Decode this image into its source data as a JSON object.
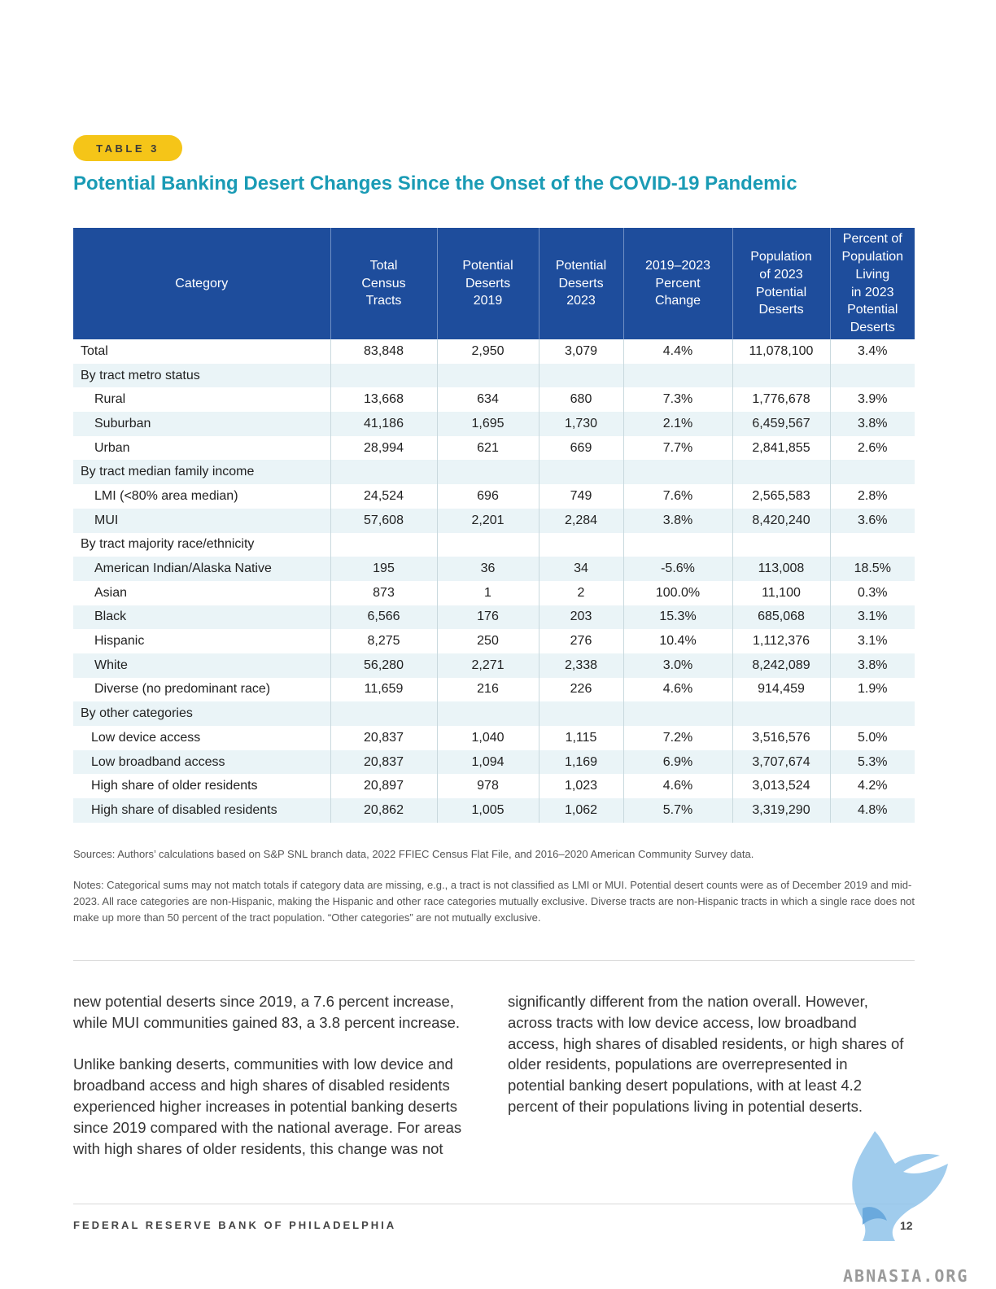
{
  "badge": "TABLE 3",
  "title": "Potential Banking Desert Changes Since the Onset of the COVID-19 Pandemic",
  "table": {
    "headers": [
      [
        "Category"
      ],
      [
        "Total",
        "Census",
        "Tracts"
      ],
      [
        "Potential",
        "Deserts",
        "2019"
      ],
      [
        "Potential",
        "Deserts",
        "2023"
      ],
      [
        "2019–2023",
        "Percent",
        "Change"
      ],
      [
        "Population",
        "of 2023",
        "Potential",
        "Deserts"
      ],
      [
        "Percent of",
        "Population",
        "Living",
        "in 2023",
        "Potential",
        "Deserts"
      ]
    ],
    "rows": [
      {
        "label": "Total",
        "indent": 0,
        "values": [
          "83,848",
          "2,950",
          "3,079",
          "4.4%",
          "11,078,100",
          "3.4%"
        ]
      },
      {
        "label": "By tract metro status",
        "indent": 0,
        "values": []
      },
      {
        "label": "Rural",
        "indent": 1,
        "values": [
          "13,668",
          "634",
          "680",
          "7.3%",
          "1,776,678",
          "3.9%"
        ]
      },
      {
        "label": "Suburban",
        "indent": 1,
        "values": [
          "41,186",
          "1,695",
          "1,730",
          "2.1%",
          "6,459,567",
          "3.8%"
        ]
      },
      {
        "label": "Urban",
        "indent": 1,
        "values": [
          "28,994",
          "621",
          "669",
          "7.7%",
          "2,841,855",
          "2.6%"
        ]
      },
      {
        "label": "By tract median family income",
        "indent": 0,
        "values": []
      },
      {
        "label": "LMI (<80% area median)",
        "indent": 1,
        "values": [
          "24,524",
          "696",
          "749",
          "7.6%",
          "2,565,583",
          "2.8%"
        ]
      },
      {
        "label": "MUI",
        "indent": 1,
        "values": [
          "57,608",
          "2,201",
          "2,284",
          "3.8%",
          "8,420,240",
          "3.6%"
        ]
      },
      {
        "label": "By tract majority race/ethnicity",
        "indent": 0,
        "values": []
      },
      {
        "label": "American Indian/Alaska Native",
        "indent": 1,
        "values": [
          "195",
          "36",
          "34",
          "-5.6%",
          "113,008",
          "18.5%"
        ]
      },
      {
        "label": "Asian",
        "indent": 1,
        "values": [
          "873",
          "1",
          "2",
          "100.0%",
          "11,100",
          "0.3%"
        ]
      },
      {
        "label": "Black",
        "indent": 1,
        "values": [
          "6,566",
          "176",
          "203",
          "15.3%",
          "685,068",
          "3.1%"
        ]
      },
      {
        "label": "Hispanic",
        "indent": 1,
        "values": [
          "8,275",
          "250",
          "276",
          "10.4%",
          "1,112,376",
          "3.1%"
        ]
      },
      {
        "label": "White",
        "indent": 1,
        "values": [
          "56,280",
          "2,271",
          "2,338",
          "3.0%",
          "8,242,089",
          "3.8%"
        ]
      },
      {
        "label": "Diverse (no predominant race)",
        "indent": 1,
        "values": [
          "11,659",
          "216",
          "226",
          "4.6%",
          "914,459",
          "1.9%"
        ]
      },
      {
        "label": "By other categories",
        "indent": 0,
        "values": []
      },
      {
        "label": "Low device access",
        "indent": 2,
        "values": [
          "20,837",
          "1,040",
          "1,115",
          "7.2%",
          "3,516,576",
          "5.0%"
        ]
      },
      {
        "label": "Low broadband access",
        "indent": 2,
        "values": [
          "20,837",
          "1,094",
          "1,169",
          "6.9%",
          "3,707,674",
          "5.3%"
        ]
      },
      {
        "label": "High share of older residents",
        "indent": 2,
        "values": [
          "20,897",
          "978",
          "1,023",
          "4.6%",
          "3,013,524",
          "4.2%"
        ]
      },
      {
        "label": "High share of disabled residents",
        "indent": 2,
        "values": [
          "20,862",
          "1,005",
          "1,062",
          "5.7%",
          "3,319,290",
          "4.8%"
        ]
      }
    ]
  },
  "sources": "Sources: Authors’ calculations based on S&P SNL branch data, 2022 FFIEC Census Flat File, and 2016–2020 American Community Survey data.",
  "notes": "Notes: Categorical sums may not match totals if category data are missing, e.g., a tract is not classified as LMI or MUI. Potential desert counts were as of December 2019 and mid-2023. All race categories are non-Hispanic, making the Hispanic and other race categories mutually exclusive. Diverse tracts are non-Hispanic tracts in which a single race does not make up more than 50 percent of the tract population. “Other categories” are not mutually exclusive.",
  "body": {
    "left_p1": "new potential deserts since 2019, a 7.6 percent increase, while MUI communities gained 83, a 3.8 percent increase.",
    "left_p2": "Unlike banking deserts, communities with low device and broadband access and high shares of disabled residents experienced higher increases in potential banking deserts since 2019 compared with the national average. For areas with high shares of older residents, this change was not",
    "right_p1": "significantly different from the nation overall. However, across tracts with low device access, low broadband access, high shares of disabled residents, or high shares of older residents, populations are overrepresented in potential banking desert populations, with at least 4.2 percent of their populations living in potential deserts."
  },
  "footer": {
    "org": "FEDERAL RESERVE BANK OF PHILADELPHIA",
    "page": "12"
  },
  "watermark": "ABNASIA.ORG",
  "colors": {
    "header_bg": "#1e4d9c",
    "title": "#1a9bb5",
    "badge": "#f5c518",
    "stripe": "#eaf4f7"
  }
}
